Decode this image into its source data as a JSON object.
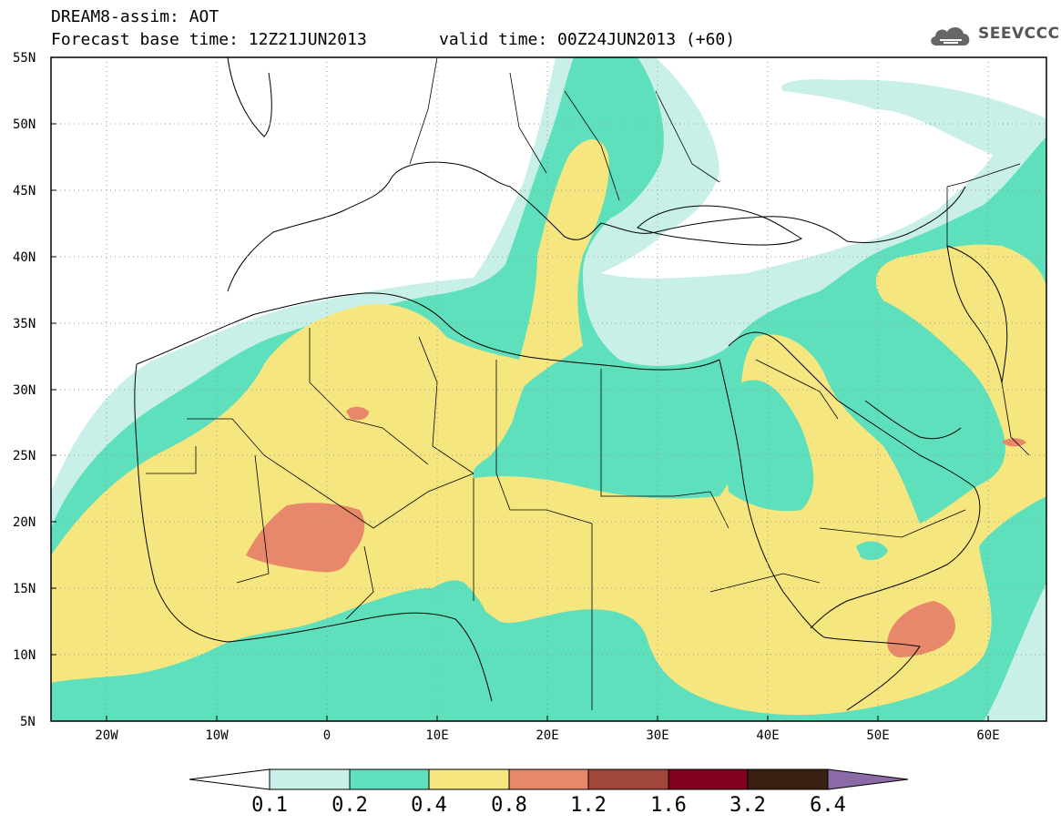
{
  "title": {
    "line1": "DREAM8-assim: AOT",
    "line2": "Forecast base time: 12Z21JUN2013",
    "valid": "valid time: 00Z24JUN2013 (+60)"
  },
  "logo": {
    "text": "SEEVCCC",
    "icon": "cloud-icon"
  },
  "map": {
    "lon_range": [
      -25,
      65
    ],
    "lat_range": [
      5,
      55
    ],
    "lat_ticks": [
      "55N",
      "50N",
      "45N",
      "40N",
      "35N",
      "30N",
      "25N",
      "20N",
      "15N",
      "10N",
      "5N"
    ],
    "lon_ticks": [
      "20W",
      "10W",
      "0",
      "10E",
      "20E",
      "30E",
      "40E",
      "50E",
      "60E"
    ],
    "grid": "dotted",
    "variable": "AOT"
  },
  "colorbar": {
    "levels": [
      "0.1",
      "0.2",
      "0.4",
      "0.8",
      "1.2",
      "1.6",
      "3.2",
      "6.4"
    ],
    "colors": [
      "#ffffff",
      "#c8f0e8",
      "#5ee0bc",
      "#f5e680",
      "#e8886a",
      "#a0463a",
      "#800020",
      "#3a2010",
      "#8c6aa8"
    ]
  },
  "colors": {
    "c01": "#c8f0e8",
    "c02": "#5ee0bc",
    "c04": "#f5e680",
    "c08": "#e8886a"
  }
}
